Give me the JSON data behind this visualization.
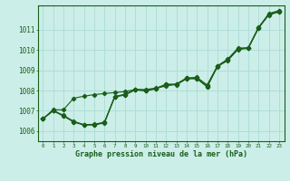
{
  "title": "Graphe pression niveau de la mer (hPa)",
  "hours": [
    0,
    1,
    2,
    3,
    4,
    5,
    6,
    7,
    8,
    9,
    10,
    11,
    12,
    13,
    14,
    15,
    16,
    17,
    18,
    19,
    20,
    21,
    22,
    23
  ],
  "ylim": [
    1005.5,
    1012.2
  ],
  "xlim": [
    -0.5,
    23.5
  ],
  "yticks": [
    1006,
    1007,
    1008,
    1009,
    1010,
    1011
  ],
  "background_color": "#cceee8",
  "line_color": "#1a5e1a",
  "grid_color": "#b0ddd8",
  "curves": {
    "lower1": [
      1006.6,
      1007.0,
      1006.75,
      1006.45,
      1006.3,
      1006.3,
      1006.4,
      1007.7,
      1007.8,
      1008.05,
      1008.0,
      1008.1,
      1008.3,
      1008.3,
      1008.6,
      1008.6,
      1008.2,
      1009.2,
      1009.5,
      1010.05,
      1010.1,
      1011.1,
      1011.75,
      1011.9
    ],
    "lower2": [
      1006.6,
      1007.0,
      1006.75,
      1006.45,
      1006.3,
      1006.32,
      1006.42,
      1007.68,
      1007.78,
      1008.03,
      1007.98,
      1008.08,
      1008.28,
      1008.28,
      1008.58,
      1008.58,
      1008.18,
      1009.18,
      1009.48,
      1010.03,
      1010.08,
      1011.08,
      1011.73,
      1011.88
    ],
    "lower3": [
      1006.6,
      1007.02,
      1006.78,
      1006.48,
      1006.32,
      1006.33,
      1006.44,
      1007.71,
      1007.81,
      1008.06,
      1008.01,
      1008.11,
      1008.31,
      1008.31,
      1008.61,
      1008.61,
      1008.21,
      1009.21,
      1009.51,
      1010.06,
      1010.11,
      1011.11,
      1011.76,
      1011.91
    ],
    "upper": [
      1006.6,
      1007.05,
      1007.05,
      1007.62,
      1007.72,
      1007.8,
      1007.85,
      1007.9,
      1007.95,
      1008.05,
      1008.05,
      1008.12,
      1008.22,
      1008.32,
      1008.62,
      1008.65,
      1008.28,
      1009.22,
      1009.55,
      1010.1,
      1010.1,
      1011.1,
      1011.8,
      1011.95
    ]
  }
}
